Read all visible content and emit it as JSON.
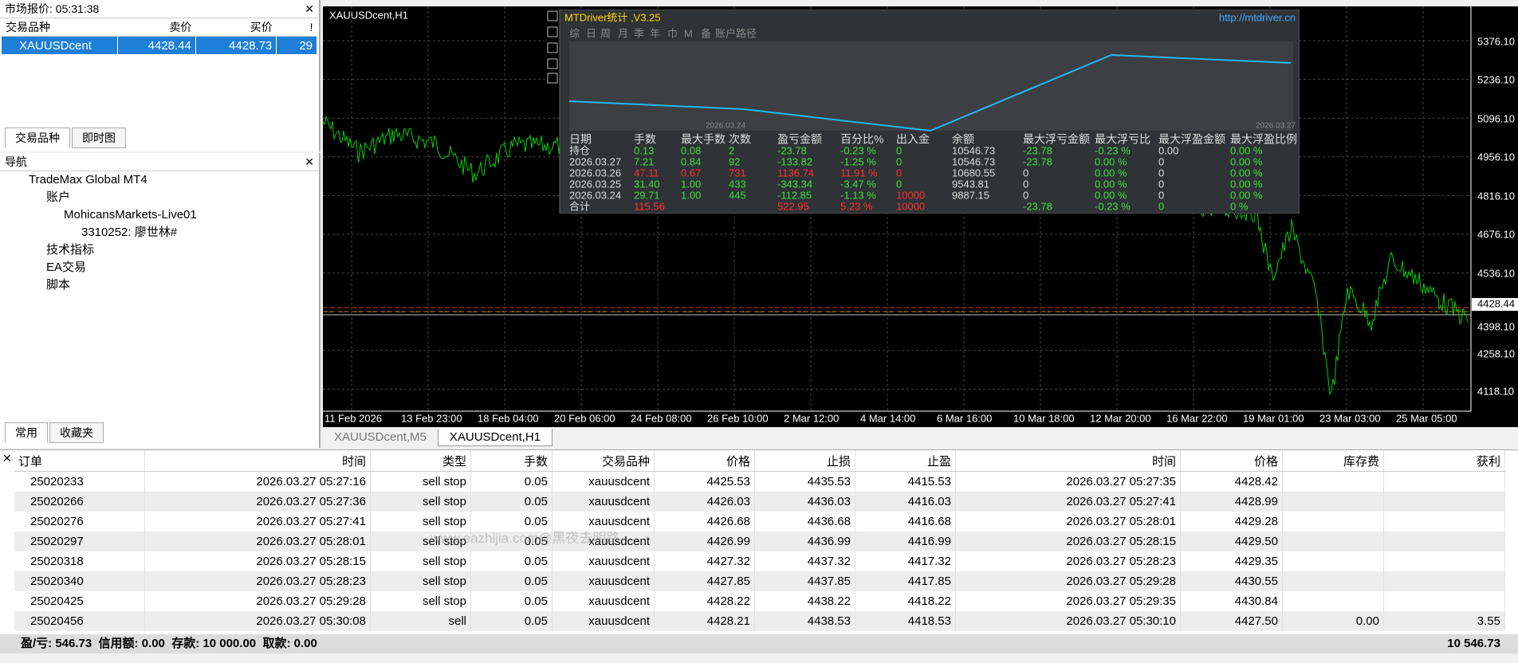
{
  "market_watch": {
    "title": "市场报价: 05:31:38",
    "headers": [
      "交易品种",
      "卖价",
      "买价",
      "!"
    ],
    "rows": [
      [
        "XAUUSDcent",
        "4428.44",
        "4428.73",
        "29"
      ]
    ],
    "tabs": [
      "交易品种",
      "即时图"
    ]
  },
  "navigator": {
    "title": "导航",
    "items": [
      "TradeMax Global MT4",
      "账户",
      "MohicansMarkets-Live01",
      "3310252: 廖世林#",
      "技术指标",
      "EA交易",
      "脚本"
    ],
    "tabs": [
      "常用",
      "收藏夹"
    ]
  },
  "chart": {
    "title": "XAUUSDcent,H1",
    "price_labels": [
      "5376.10",
      "5236.10",
      "5096.10",
      "4956.10",
      "4816.10",
      "4676.10",
      "4536.10",
      "4428.44",
      "4398.10",
      "4258.10",
      "4118.10"
    ],
    "time_labels": [
      "11 Feb 2026",
      "13 Feb 23:00",
      "18 Feb 04:00",
      "20 Feb 06:00",
      "24 Feb 08:00",
      "26 Feb 10:00",
      "2 Mar 12:00",
      "4 Mar 14:00",
      "6 Mar 16:00",
      "10 Mar 18:00",
      "12 Mar 20:00",
      "16 Mar 22:00",
      "19 Mar 01:00",
      "23 Mar 03:00",
      "25 Mar 05:00"
    ]
  },
  "mtdriver": {
    "title": "MTDriver统计 ,V3.25",
    "url": "http://mtdriver.cn",
    "tabs": [
      "综",
      "日",
      "周",
      "月",
      "季",
      "年",
      "巾",
      "M",
      "备",
      "账户",
      "路径"
    ],
    "graph_dates": [
      "2026.03.24",
      "2026.03.27"
    ],
    "headers": [
      "日期",
      "手数",
      "最大手数",
      "次数",
      "盈亏金额",
      "百分比%",
      "出入金",
      "余额",
      "最大浮亏金额",
      "最大浮亏比",
      "最大浮盈金额",
      "最大浮盈比例"
    ],
    "rows": [
      [
        "持仓",
        "0.13",
        "0.08",
        "2",
        "-23.78",
        "-0.23 %",
        "0",
        "10546.73",
        "-23.78",
        "-0.23 %",
        "0.00",
        "0.00 %"
      ],
      [
        "2026.03.27",
        "7.21",
        "0.84",
        "92",
        "-133.82",
        "-1.25 %",
        "0",
        "10546.73",
        "-23.78",
        "0.00 %",
        "0",
        "0.00 %"
      ],
      [
        "2026.03.26",
        "47.11",
        "0.67",
        "731",
        "1136.74",
        "11.91 %",
        "0",
        "10680.55",
        "0",
        "0.00 %",
        "0",
        "0.00 %"
      ],
      [
        "2026.03.25",
        "31.40",
        "1.00",
        "433",
        "-343.34",
        "-3.47 %",
        "0",
        "9543.81",
        "0",
        "0.00 %",
        "0",
        "0.00 %"
      ],
      [
        "2026.03.24",
        "29.71",
        "1.00",
        "445",
        "-112.85",
        "-1.13 %",
        "10000",
        "9887.15",
        "0",
        "0.00 %",
        "0",
        "0.00 %"
      ],
      [
        "合计",
        "115.56",
        "",
        "",
        "522.95",
        "5.23 %",
        "10000",
        "",
        "-23.78",
        "-0.23 %",
        "0",
        "0 %"
      ]
    ]
  },
  "chart_tabs": [
    "XAUUSDcent,M5",
    "XAUUSDcent,H1"
  ],
  "orders": {
    "headers": [
      "订单",
      "时间",
      "类型",
      "手数",
      "交易品种",
      "价格",
      "止损",
      "止盈",
      "时间",
      "价格",
      "库存费",
      "获利"
    ],
    "rows": [
      [
        "25020233",
        "2026.03.27 05:27:16",
        "sell stop",
        "0.05",
        "xauusdcent",
        "4425.53",
        "4435.53",
        "4415.53",
        "2026.03.27 05:27:35",
        "4428.42",
        "",
        ""
      ],
      [
        "25020266",
        "2026.03.27 05:27:36",
        "sell stop",
        "0.05",
        "xauusdcent",
        "4426.03",
        "4436.03",
        "4416.03",
        "2026.03.27 05:27:41",
        "4428.99",
        "",
        ""
      ],
      [
        "25020276",
        "2026.03.27 05:27:41",
        "sell stop",
        "0.05",
        "xauusdcent",
        "4426.68",
        "4436.68",
        "4416.68",
        "2026.03.27 05:28:01",
        "4429.28",
        "",
        ""
      ],
      [
        "25020297",
        "2026.03.27 05:28:01",
        "sell stop",
        "0.05",
        "xauusdcent",
        "4426.99",
        "4436.99",
        "4416.99",
        "2026.03.27 05:28:15",
        "4429.50",
        "",
        ""
      ],
      [
        "25020318",
        "2026.03.27 05:28:15",
        "sell stop",
        "0.05",
        "xauusdcent",
        "4427.32",
        "4437.32",
        "4417.32",
        "2026.03.27 05:28:23",
        "4429.35",
        "",
        ""
      ],
      [
        "25020340",
        "2026.03.27 05:28:23",
        "sell stop",
        "0.05",
        "xauusdcent",
        "4427.85",
        "4437.85",
        "4417.85",
        "2026.03.27 05:29:28",
        "4430.55",
        "",
        ""
      ],
      [
        "25020425",
        "2026.03.27 05:29:28",
        "sell stop",
        "0.05",
        "xauusdcent",
        "4428.22",
        "4438.22",
        "4418.22",
        "2026.03.27 05:29:35",
        "4430.84",
        "",
        ""
      ],
      [
        "25020456",
        "2026.03.27 05:30:08",
        "sell",
        "0.05",
        "xauusdcent",
        "4428.21",
        "4438.53",
        "4418.53",
        "2026.03.27 05:30:10",
        "4427.50",
        "0.00",
        "3.55"
      ]
    ]
  },
  "status": {
    "summary": "盈/亏: 546.73  信用额: 0.00  存款: 10 000.00  取款: 0.00",
    "balance": "10 546.73"
  },
  "watermark": "www.eazhijia.com@黑夜去明路"
}
